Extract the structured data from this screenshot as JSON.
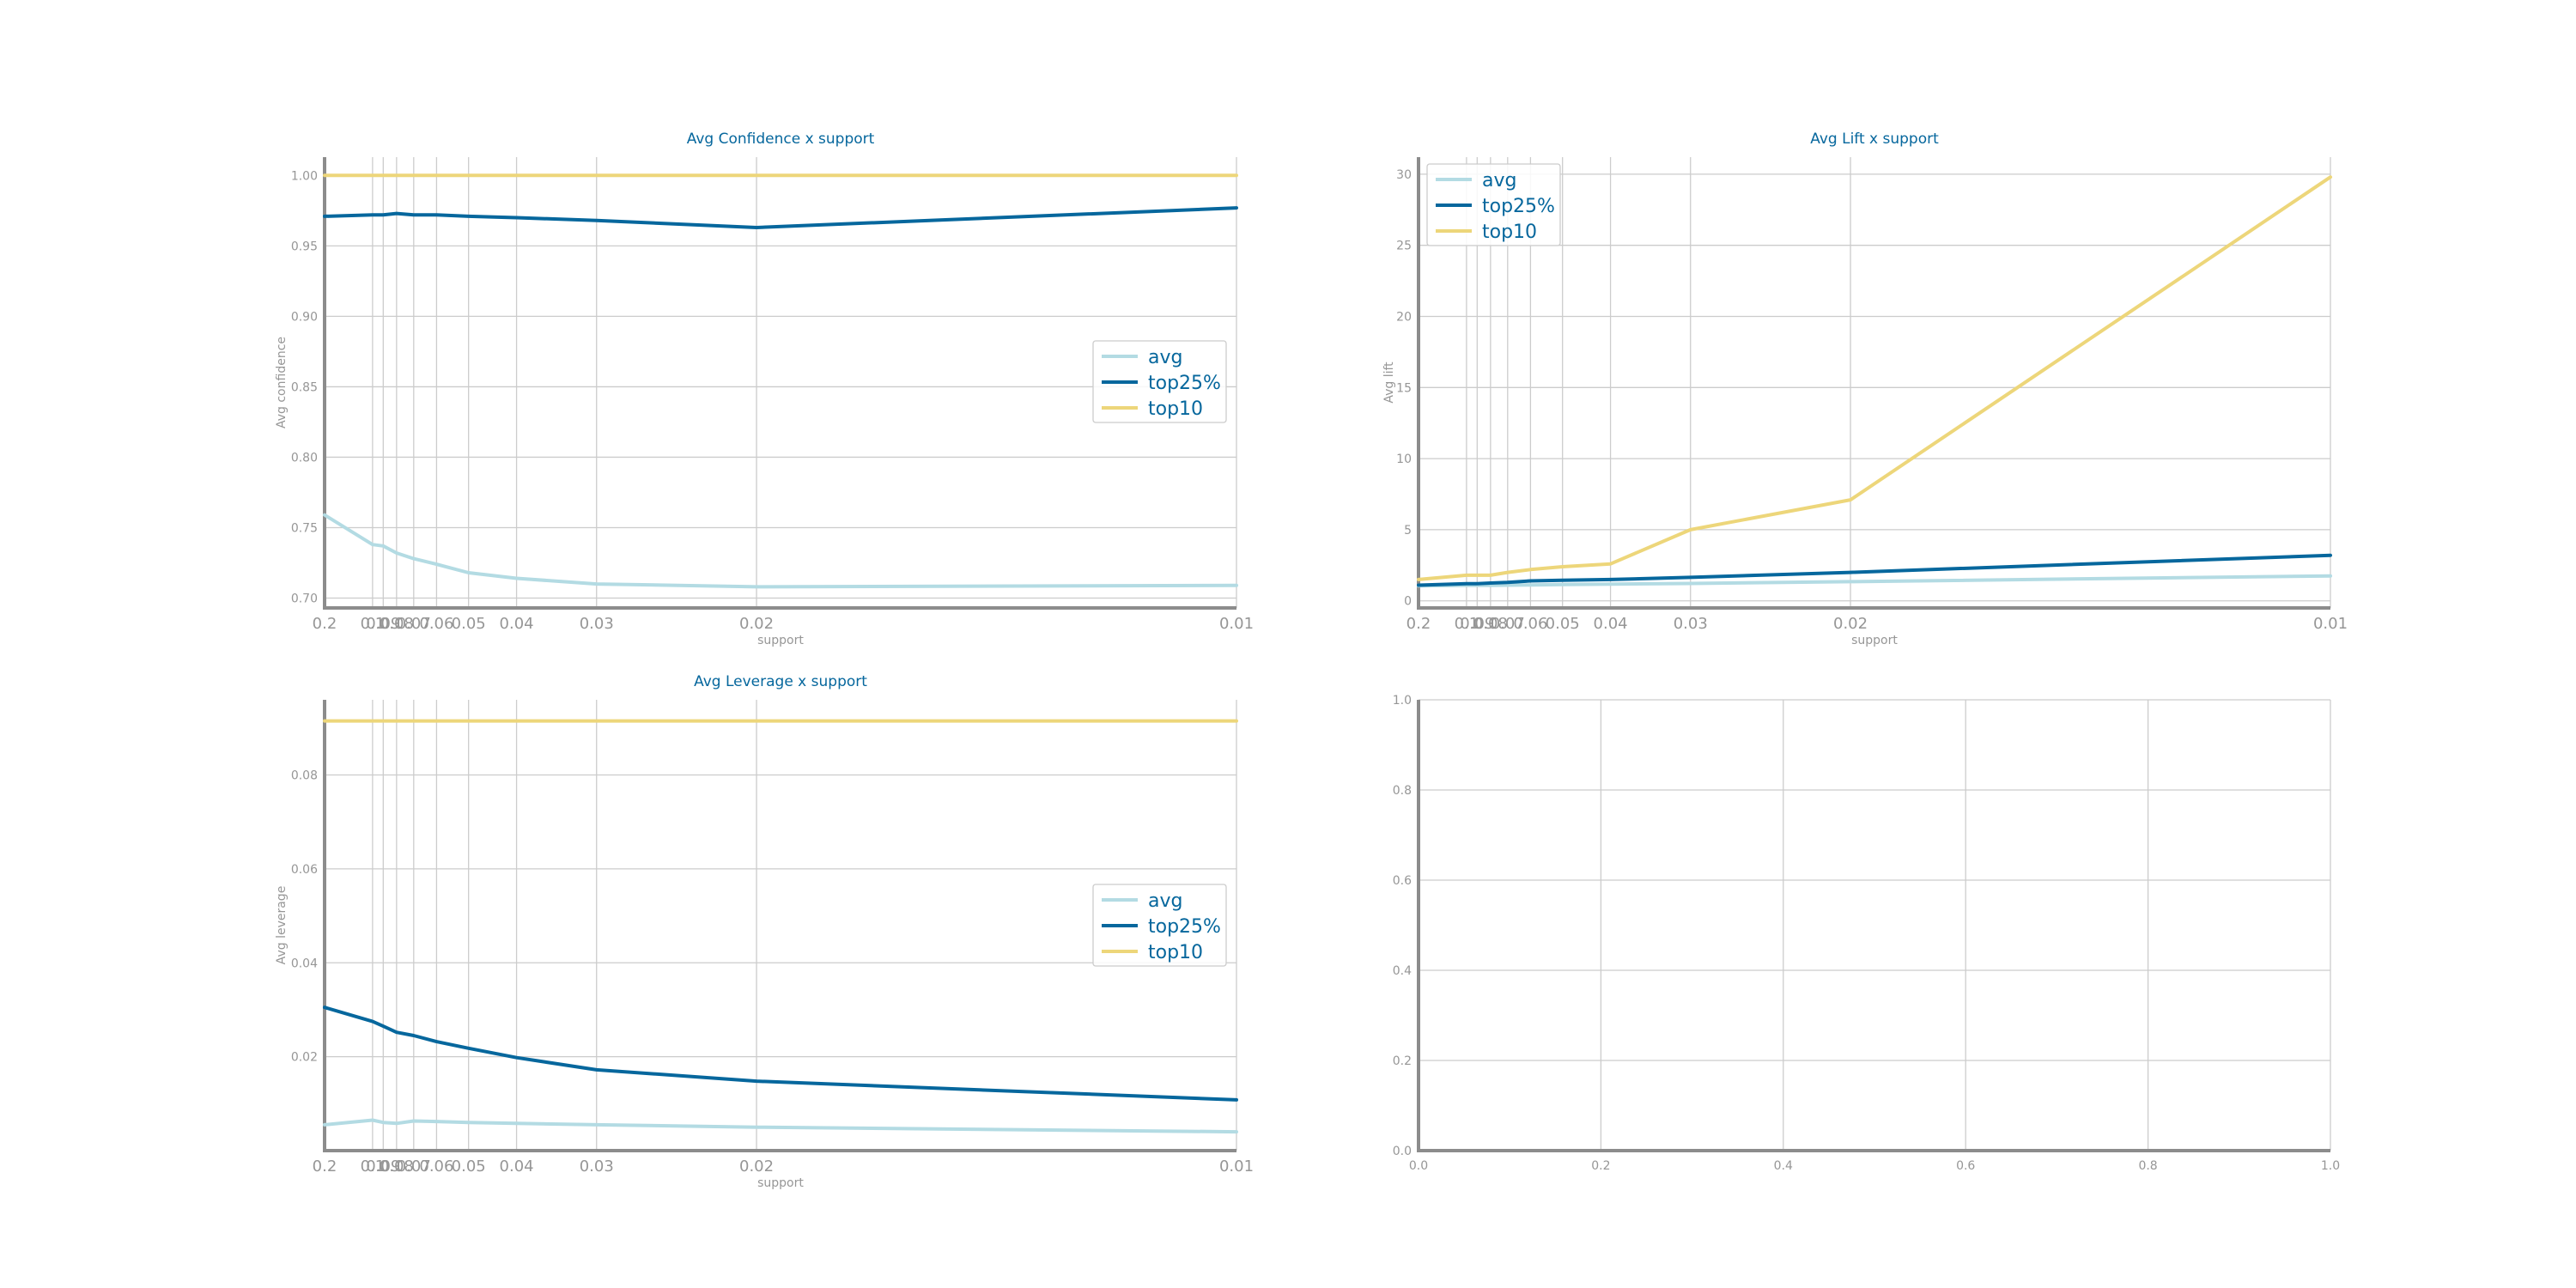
{
  "colors": {
    "avg": "#b3dbe3",
    "top25": "#06679d",
    "top10": "#edd67a",
    "grid": "#cccccc",
    "spine": "#8c8c8c",
    "text": "#969696",
    "accent": "#06679d"
  },
  "chart_data": [
    {
      "type": "line",
      "title": "Avg Confidence x support",
      "xlabel": "support",
      "ylabel": "Avg confidence",
      "x_scale": "reciprocal",
      "x": [
        0.2,
        0.1,
        0.09,
        0.08,
        0.07,
        0.06,
        0.05,
        0.04,
        0.03,
        0.02,
        0.01
      ],
      "x_tick_labels": [
        "0.2",
        "0.1",
        "0.09",
        "0.08",
        "0.07",
        "0.06",
        "0.05",
        "0.04",
        "0.03",
        "0.02",
        "0.01"
      ],
      "y_ticks": [
        0.7,
        0.75,
        0.8,
        0.85,
        0.9,
        0.95,
        1.0
      ],
      "y_tick_labels": [
        "0.70",
        "0.75",
        "0.80",
        "0.85",
        "0.90",
        "0.95",
        "1.00"
      ],
      "ylim": [
        0.693,
        1.013
      ],
      "grid": true,
      "legend": "center-right",
      "series": [
        {
          "name": "avg",
          "values": [
            0.759,
            0.738,
            0.737,
            0.732,
            0.728,
            0.724,
            0.718,
            0.714,
            0.71,
            0.708,
            0.709
          ]
        },
        {
          "name": "top25%",
          "values": [
            0.971,
            0.972,
            0.972,
            0.973,
            0.972,
            0.972,
            0.971,
            0.97,
            0.968,
            0.963,
            0.977
          ]
        },
        {
          "name": "top10",
          "values": [
            1.0,
            1.0,
            1.0,
            1.0,
            1.0,
            1.0,
            1.0,
            1.0,
            1.0,
            1.0,
            1.0
          ]
        }
      ]
    },
    {
      "type": "line",
      "title": "Avg Lift x support",
      "xlabel": "support",
      "ylabel": "Avg lift",
      "x_scale": "reciprocal",
      "x": [
        0.2,
        0.1,
        0.09,
        0.08,
        0.07,
        0.06,
        0.05,
        0.04,
        0.03,
        0.02,
        0.01
      ],
      "x_tick_labels": [
        "0.2",
        "0.1",
        "0.09",
        "0.08",
        "0.07",
        "0.06",
        "0.05",
        "0.04",
        "0.03",
        "0.02",
        "0.01"
      ],
      "y_ticks": [
        0,
        5,
        10,
        15,
        20,
        25,
        30
      ],
      "y_tick_labels": [
        "0",
        "5",
        "10",
        "15",
        "20",
        "25",
        "30"
      ],
      "ylim": [
        -0.5,
        31.2
      ],
      "grid": true,
      "legend": "top-left",
      "series": [
        {
          "name": "avg",
          "values": [
            1.05,
            1.08,
            1.08,
            1.09,
            1.1,
            1.12,
            1.14,
            1.17,
            1.22,
            1.35,
            1.75
          ]
        },
        {
          "name": "top25%",
          "values": [
            1.1,
            1.2,
            1.2,
            1.25,
            1.3,
            1.4,
            1.45,
            1.5,
            1.65,
            2.0,
            3.2
          ]
        },
        {
          "name": "top10",
          "values": [
            1.5,
            1.8,
            1.8,
            1.8,
            2.0,
            2.2,
            2.4,
            2.6,
            5.0,
            7.1,
            29.8
          ]
        }
      ]
    },
    {
      "type": "line",
      "title": "Avg Leverage x support",
      "xlabel": "support",
      "ylabel": "Avg leverage",
      "x_scale": "reciprocal",
      "x": [
        0.2,
        0.1,
        0.09,
        0.08,
        0.07,
        0.06,
        0.05,
        0.04,
        0.03,
        0.02,
        0.01
      ],
      "x_tick_labels": [
        "0.2",
        "0.1",
        "0.09",
        "0.08",
        "0.07",
        "0.06",
        "0.05",
        "0.04",
        "0.03",
        "0.02",
        "0.01"
      ],
      "y_ticks": [
        0.02,
        0.04,
        0.06,
        0.08
      ],
      "y_tick_labels": [
        "0.02",
        "0.04",
        "0.06",
        "0.08"
      ],
      "ylim": [
        0.0,
        0.096
      ],
      "grid": true,
      "legend": "center-right",
      "series": [
        {
          "name": "avg",
          "values": [
            0.0055,
            0.0065,
            0.006,
            0.0058,
            0.0063,
            0.0062,
            0.006,
            0.0058,
            0.0055,
            0.005,
            0.004
          ]
        },
        {
          "name": "top25%",
          "values": [
            0.0305,
            0.0275,
            0.0265,
            0.0252,
            0.0245,
            0.0232,
            0.0218,
            0.0198,
            0.0172,
            0.0148,
            0.0108
          ]
        },
        {
          "name": "top10",
          "values": [
            0.0915,
            0.0915,
            0.0915,
            0.0915,
            0.0915,
            0.0915,
            0.0915,
            0.0915,
            0.0915,
            0.0915,
            0.0915
          ]
        }
      ]
    },
    {
      "type": "line",
      "title": "",
      "xlabel": "",
      "ylabel": "",
      "x_scale": "linear",
      "xlim": [
        0.0,
        1.0
      ],
      "ylim": [
        0.0,
        1.0
      ],
      "x_ticks": [
        0.0,
        0.2,
        0.4,
        0.6,
        0.8,
        1.0
      ],
      "x_tick_labels": [
        "0.0",
        "0.2",
        "0.4",
        "0.6",
        "0.8",
        "1.0"
      ],
      "y_ticks": [
        0.0,
        0.2,
        0.4,
        0.6,
        0.8,
        1.0
      ],
      "y_tick_labels": [
        "0.0",
        "0.2",
        "0.4",
        "0.6",
        "0.8",
        "1.0"
      ],
      "grid": true,
      "series": []
    }
  ]
}
